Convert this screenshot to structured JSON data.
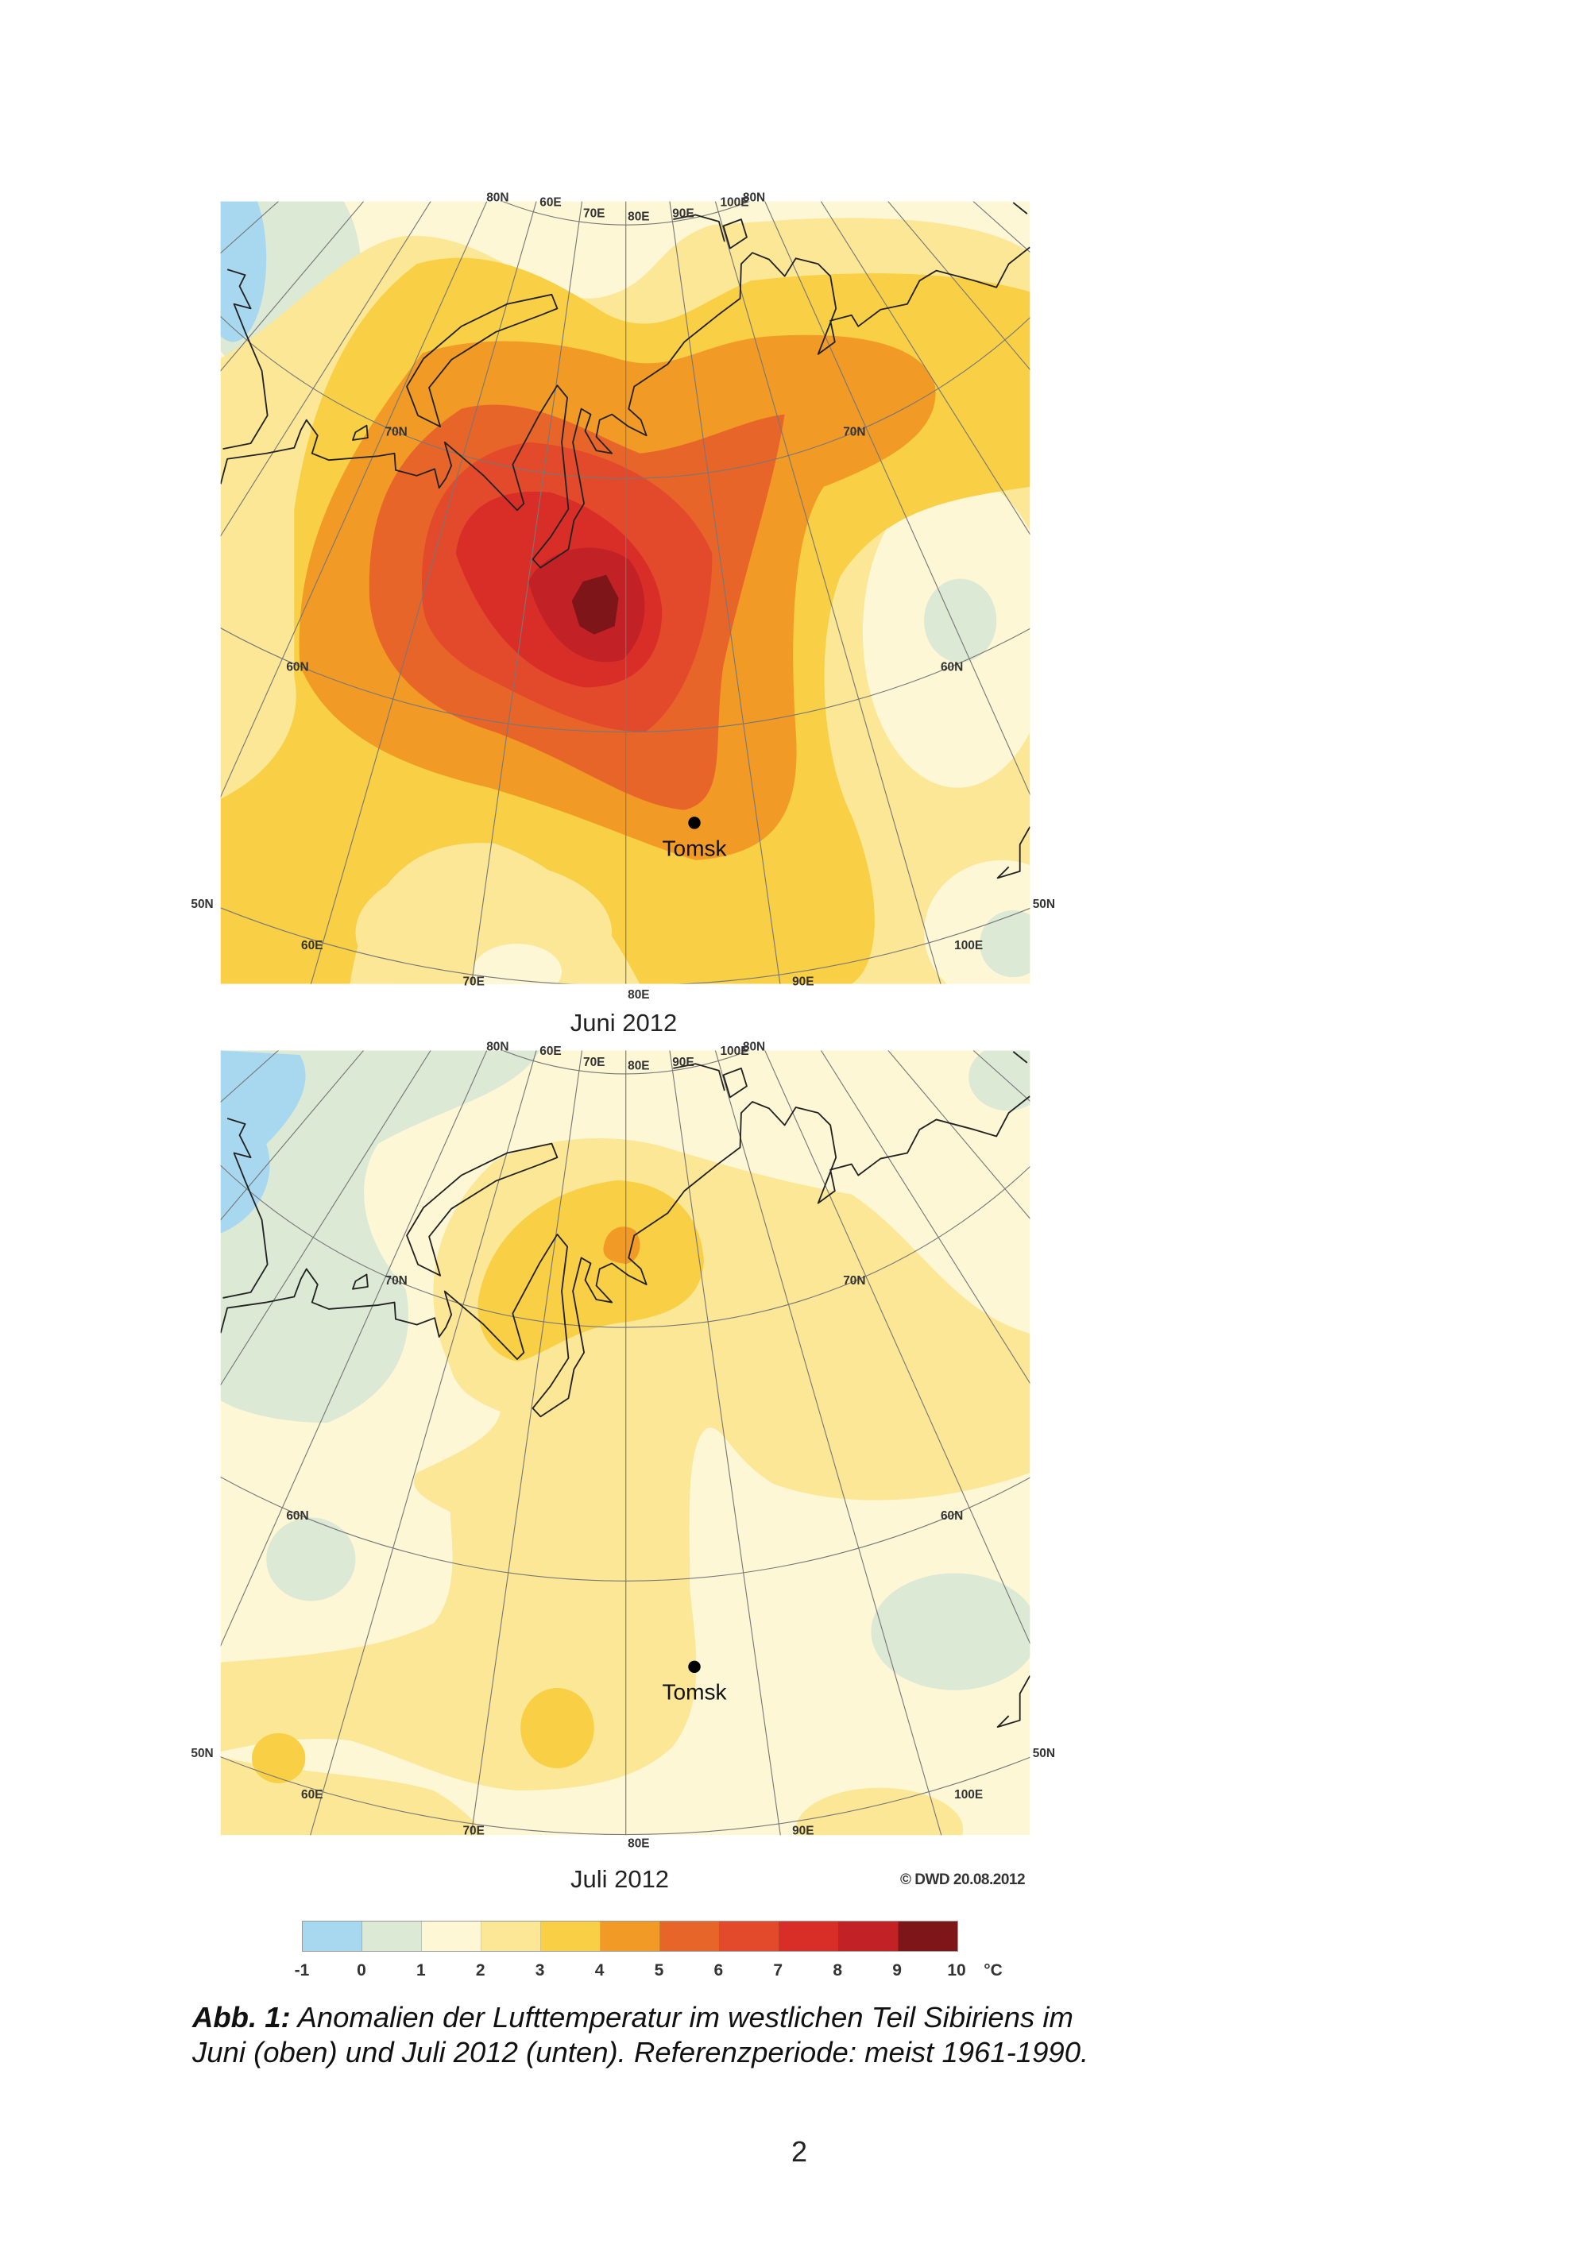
{
  "maps": [
    {
      "title": "Juni 2012",
      "city": "Tomsk",
      "grid_labels": [
        "80N",
        "60E",
        "70E",
        "80E",
        "90E",
        "100E",
        "80N",
        "70N",
        "70N",
        "60N",
        "60N",
        "50N",
        "50N",
        "60E",
        "100E",
        "70E",
        "80E",
        "90E"
      ]
    },
    {
      "title": "Juli 2012",
      "city": "Tomsk",
      "grid_labels": [
        "80N",
        "60E",
        "70E",
        "80E",
        "90E",
        "100E",
        "80N",
        "70N",
        "70N",
        "60N",
        "60N",
        "50N",
        "50N",
        "60E",
        "100E",
        "70E",
        "80E",
        "90E"
      ]
    }
  ],
  "copyright": "© DWD 20.08.2012",
  "legend": {
    "unit": "°C",
    "ticks": [
      "-1",
      "0",
      "1",
      "2",
      "3",
      "4",
      "5",
      "6",
      "7",
      "8",
      "9",
      "10"
    ],
    "colors": [
      "#a8d8f0",
      "#dbe9d5",
      "#fdf7d6",
      "#fbe795",
      "#f8cf45",
      "#f29a26",
      "#e8652a",
      "#e24a2b",
      "#d92e27",
      "#c22226",
      "#7d1519"
    ]
  },
  "caption": {
    "label": "Abb. 1:",
    "line1": " Anomalien der Lufttemperatur im westlichen Teil Sibiriens im",
    "line2": "Juni (oben) und Juli 2012 (unten). Referenzperiode: meist 1961-1990."
  },
  "page_number": "2"
}
